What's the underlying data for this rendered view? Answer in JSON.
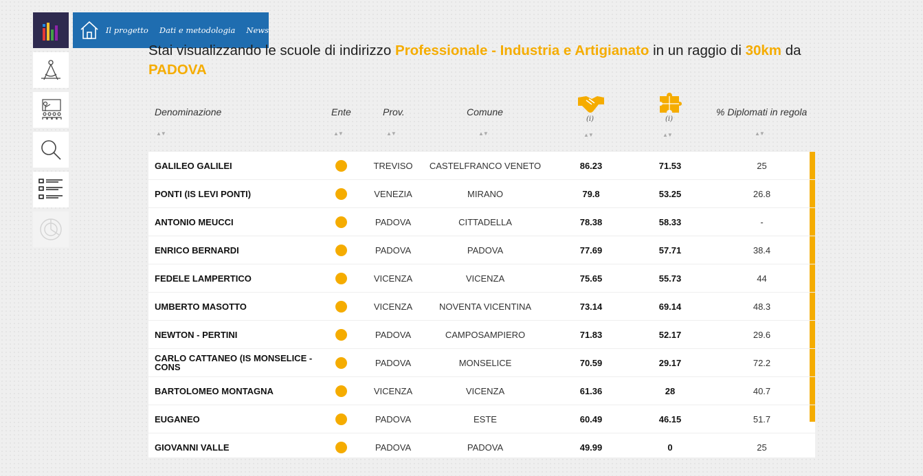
{
  "nav": {
    "links": [
      "Il progetto",
      "Dati e metodologia",
      "News"
    ]
  },
  "headline": {
    "prefix": "Stai visualizzando le scuole di indirizzo ",
    "indirizzo": "Professionale - Industria e Artigianato",
    "mid": " in un raggio di ",
    "radius": "30km",
    "da": " da ",
    "city": "PADOVA"
  },
  "table": {
    "headers": {
      "denominazione": "Denominazione",
      "ente": "Ente",
      "prov": "Prov.",
      "comune": "Comune",
      "info1": "(i)",
      "info2": "(i)",
      "diplomati": "% Diplomati in regola"
    },
    "rows": [
      {
        "name": "GALILEO GALILEI",
        "prov": "TREVISO",
        "comune": "CASTELFRANCO VENETO",
        "v1": "86.23",
        "v2": "71.53",
        "v3": "25"
      },
      {
        "name": "PONTI (IS LEVI PONTI)",
        "prov": "VENEZIA",
        "comune": "MIRANO",
        "v1": "79.8",
        "v2": "53.25",
        "v3": "26.8"
      },
      {
        "name": "ANTONIO MEUCCI",
        "prov": "PADOVA",
        "comune": "CITTADELLA",
        "v1": "78.38",
        "v2": "58.33",
        "v3": "-"
      },
      {
        "name": "ENRICO BERNARDI",
        "prov": "PADOVA",
        "comune": "PADOVA",
        "v1": "77.69",
        "v2": "57.71",
        "v3": "38.4"
      },
      {
        "name": "FEDELE LAMPERTICO",
        "prov": "VICENZA",
        "comune": "VICENZA",
        "v1": "75.65",
        "v2": "55.73",
        "v3": "44"
      },
      {
        "name": "UMBERTO MASOTTO",
        "prov": "VICENZA",
        "comune": "NOVENTA VICENTINA",
        "v1": "73.14",
        "v2": "69.14",
        "v3": "48.3"
      },
      {
        "name": "NEWTON - PERTINI",
        "prov": "PADOVA",
        "comune": "CAMPOSAMPIERO",
        "v1": "71.83",
        "v2": "52.17",
        "v3": "29.6"
      },
      {
        "name": "CARLO CATTANEO (IS MONSELICE - CONS",
        "prov": "PADOVA",
        "comune": "MONSELICE",
        "v1": "70.59",
        "v2": "29.17",
        "v3": "72.2"
      },
      {
        "name": "BARTOLOMEO MONTAGNA",
        "prov": "VICENZA",
        "comune": "VICENZA",
        "v1": "61.36",
        "v2": "28",
        "v3": "40.7"
      },
      {
        "name": "EUGANEO",
        "prov": "PADOVA",
        "comune": "ESTE",
        "v1": "60.49",
        "v2": "46.15",
        "v3": "51.7"
      },
      {
        "name": "GIOVANNI VALLE",
        "prov": "PADOVA",
        "comune": "PADOVA",
        "v1": "49.99",
        "v2": "0",
        "v3": "25"
      }
    ]
  },
  "colors": {
    "accent": "#f5ac00",
    "nav": "#1f6db0",
    "logo_bg": "#2e2a4f"
  }
}
